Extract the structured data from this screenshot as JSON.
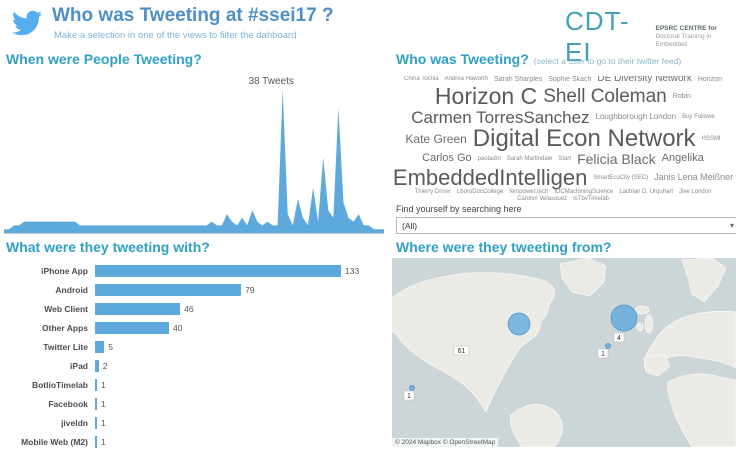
{
  "header": {
    "title": "Who was Tweeting at #ssei17 ?",
    "subtitle": "Make a selection in one of the views to filter the dahboard",
    "logo_text": "CDT-EI",
    "logo_line1": "EPSRC CENTRE for",
    "logo_line2": "Doctoral Training in Embedded"
  },
  "sections": {
    "when": "When were People Tweeting?",
    "who": "Who was Tweeting?",
    "who_hint": "(select a user to go to their twitter feed)",
    "with": "What were they tweeting with?",
    "where": "Where were they tweeting from?"
  },
  "search": {
    "label": "Find yourself by searching here",
    "value": "(All)"
  },
  "word_cloud": [
    {
      "text": "China Tochia",
      "size": 6
    },
    {
      "text": "Andrea Haworth",
      "size": 6
    },
    {
      "text": "Sarah Sharples",
      "size": 7
    },
    {
      "text": "Sophie Skach",
      "size": 7
    },
    {
      "text": "DE Diversity Network",
      "size": 10
    },
    {
      "text": "Horizon",
      "size": 7
    },
    {
      "text": "Horizon C",
      "size": 23
    },
    {
      "text": "Shell Coleman",
      "size": 19
    },
    {
      "text": "Robin",
      "size": 7
    },
    {
      "text": "Carmen TorresSanchez",
      "size": 17
    },
    {
      "text": "Loughborough London",
      "size": 8
    },
    {
      "text": "Buy Followe",
      "size": 6
    },
    {
      "text": "Kate Green",
      "size": 12
    },
    {
      "text": "Digital Econ Network",
      "size": 24
    },
    {
      "text": "HSSMI",
      "size": 6
    },
    {
      "text": "Carlos Go",
      "size": 11
    },
    {
      "text": "paoladm",
      "size": 6
    },
    {
      "text": "Sarah Martindale",
      "size": 6
    },
    {
      "text": "Start",
      "size": 6
    },
    {
      "text": "Felicia Black",
      "size": 14
    },
    {
      "text": "Angelika",
      "size": 11
    },
    {
      "text": "EmbeddedIntelligen",
      "size": 22
    },
    {
      "text": "SmartEcoCity (SEC)",
      "size": 6
    },
    {
      "text": "Janis Lena Meißner",
      "size": 9
    },
    {
      "text": "Thierry Driver",
      "size": 6
    },
    {
      "text": "LboroDocCollege",
      "size": 6
    },
    {
      "text": "fempower.tech",
      "size": 6
    },
    {
      "text": "IDCMachiningScience",
      "size": 6
    },
    {
      "text": "Lachlan D. Urquhart",
      "size": 6
    },
    {
      "text": "Jive London",
      "size": 6
    },
    {
      "text": "Carolyn Velasquez",
      "size": 6
    },
    {
      "text": "IsTbyTimelab",
      "size": 6
    }
  ],
  "chart_data": [
    {
      "type": "area",
      "title": "When were People Tweeting?",
      "annotation": "38 Tweets",
      "ylim": [
        0,
        38
      ],
      "values": [
        1,
        1,
        2,
        2,
        3,
        3,
        3,
        3,
        3,
        3,
        3,
        3,
        3,
        3,
        3,
        2,
        2,
        2,
        2,
        2,
        2,
        2,
        2,
        2,
        2,
        2,
        2,
        2,
        2,
        2,
        2,
        2,
        2,
        2,
        2,
        2,
        2,
        2,
        2,
        2,
        2,
        3,
        2,
        2,
        5,
        3,
        2,
        4,
        2,
        6,
        3,
        2,
        3,
        2,
        2,
        38,
        5,
        2,
        9,
        4,
        2,
        12,
        3,
        20,
        6,
        4,
        33,
        8,
        4,
        3,
        5,
        2,
        2,
        1,
        1,
        1
      ]
    },
    {
      "type": "bar",
      "title": "What were they tweeting with?",
      "categories": [
        "iPhone App",
        "Android",
        "Web Client",
        "Other Apps",
        "Twitter Lite",
        "iPad",
        "BotlioTimelab",
        "Facebook",
        "jiveldn",
        "Mobile Web (M2)"
      ],
      "values": [
        133,
        79,
        46,
        40,
        5,
        2,
        1,
        1,
        1,
        1
      ]
    },
    {
      "type": "map",
      "title": "Where were they tweeting from?",
      "attribution": "© 2024 Mapbox © OpenStreetMap",
      "bubbles": [
        {
          "x": 127,
          "y": 66,
          "r": 11
        },
        {
          "x": 232,
          "y": 60,
          "r": 13
        },
        {
          "x": 20,
          "y": 130,
          "r": 2.5
        },
        {
          "x": 216,
          "y": 88,
          "r": 2.5
        }
      ],
      "labels": [
        {
          "text": "61",
          "x": 62,
          "y": 88
        },
        {
          "text": "1",
          "x": 12,
          "y": 133
        },
        {
          "text": "4",
          "x": 222,
          "y": 75
        },
        {
          "text": "1",
          "x": 206,
          "y": 91
        }
      ]
    }
  ],
  "colors": {
    "accent_blue": "#5ea9dc",
    "header_teal": "#2fa0c6",
    "title_blue": "#4e8fc7"
  }
}
